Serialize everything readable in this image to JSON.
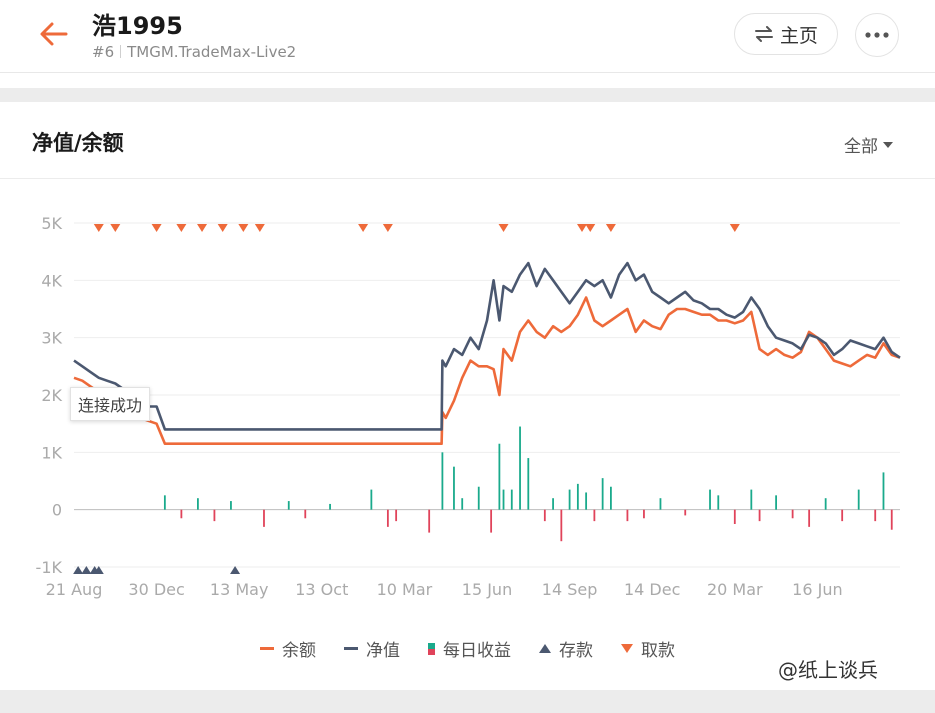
{
  "header": {
    "title": "浩1995",
    "account_id": "#6",
    "server": "TMGM.TradeMax-Live2",
    "home_label": "主页",
    "icons": {
      "back": "back-arrow-icon",
      "swap": "swap-icon",
      "more": "more-icon"
    }
  },
  "card": {
    "title": "净值/余额",
    "range_label": "全部"
  },
  "tooltip": "连接成功",
  "legend": [
    {
      "label": "余额",
      "color": "#ee6a3a",
      "kind": "line"
    },
    {
      "label": "净值",
      "color": "#4b5870",
      "kind": "line"
    },
    {
      "label": "每日收益",
      "color": "#1aaa8c",
      "kind": "bar"
    },
    {
      "label": "存款",
      "color": "#4b5870",
      "kind": "tri-up"
    },
    {
      "label": "取款",
      "color": "#ee6a3a",
      "kind": "tri-down"
    }
  ],
  "watermark": "@纸上谈兵",
  "colors": {
    "balance": "#ee6a3a",
    "equity": "#4b5870",
    "profit_pos": "#1aaa8c",
    "profit_neg": "#e0435a",
    "grid": "#eeeeee",
    "axis_text": "#aaaaaa"
  },
  "chart_data": {
    "type": "line",
    "title": "",
    "ylim": [
      -1000,
      5000
    ],
    "y_ticks": [
      5000,
      4000,
      3000,
      2000,
      1000,
      0,
      -1000
    ],
    "y_tick_labels": [
      "5K",
      "4K",
      "3K",
      "2K",
      "1K",
      "0",
      "-1K"
    ],
    "x_tick_labels": [
      "21 Aug",
      "30 Dec",
      "13 May",
      "13 Oct",
      "10 Mar",
      "15 Jun",
      "14 Sep",
      "14 Dec",
      "20 Mar",
      "16 Jun"
    ],
    "x_range": [
      0,
      100
    ],
    "x_tick_positions": [
      0,
      10,
      20,
      30,
      40,
      50,
      60,
      70,
      80,
      90
    ],
    "grid": true,
    "legend_position": "bottom",
    "series": [
      {
        "name": "净值",
        "points": [
          [
            0,
            2600
          ],
          [
            1,
            2500
          ],
          [
            2,
            2400
          ],
          [
            3,
            2300
          ],
          [
            4,
            2250
          ],
          [
            5,
            2200
          ],
          [
            6,
            2100
          ],
          [
            7,
            1900
          ],
          [
            8,
            1850
          ],
          [
            9,
            1800
          ],
          [
            10,
            1800
          ],
          [
            11,
            1400
          ],
          [
            20,
            1400
          ],
          [
            30,
            1400
          ],
          [
            40,
            1400
          ],
          [
            44.5,
            1400
          ],
          [
            44.6,
            2600
          ],
          [
            45,
            2500
          ],
          [
            46,
            2800
          ],
          [
            47,
            2700
          ],
          [
            48,
            3000
          ],
          [
            49,
            2800
          ],
          [
            50,
            3300
          ],
          [
            50.8,
            4000
          ],
          [
            51.5,
            3300
          ],
          [
            52,
            3900
          ],
          [
            53,
            3800
          ],
          [
            54,
            4100
          ],
          [
            55,
            4300
          ],
          [
            56,
            3900
          ],
          [
            57,
            4200
          ],
          [
            58,
            4000
          ],
          [
            59,
            3800
          ],
          [
            60,
            3600
          ],
          [
            61,
            3800
          ],
          [
            62,
            4000
          ],
          [
            63,
            3900
          ],
          [
            64,
            4000
          ],
          [
            65,
            3700
          ],
          [
            66,
            4100
          ],
          [
            67,
            4300
          ],
          [
            68,
            4000
          ],
          [
            69,
            4100
          ],
          [
            70,
            3800
          ],
          [
            71,
            3700
          ],
          [
            72,
            3600
          ],
          [
            73,
            3700
          ],
          [
            74,
            3800
          ],
          [
            75,
            3650
          ],
          [
            76,
            3600
          ],
          [
            77,
            3500
          ],
          [
            78,
            3500
          ],
          [
            79,
            3400
          ],
          [
            80,
            3350
          ],
          [
            81,
            3450
          ],
          [
            82,
            3700
          ],
          [
            83,
            3500
          ],
          [
            84,
            3200
          ],
          [
            85,
            3000
          ],
          [
            86,
            2950
          ],
          [
            87,
            2900
          ],
          [
            88,
            2800
          ],
          [
            89,
            3050
          ],
          [
            90,
            3000
          ],
          [
            91,
            2900
          ],
          [
            92,
            2700
          ],
          [
            93,
            2800
          ],
          [
            94,
            2950
          ],
          [
            95,
            2900
          ],
          [
            96,
            2850
          ],
          [
            97,
            2800
          ],
          [
            98,
            3000
          ],
          [
            99,
            2750
          ],
          [
            100,
            2650
          ]
        ]
      },
      {
        "name": "余额",
        "points": [
          [
            0,
            2300
          ],
          [
            1,
            2250
          ],
          [
            2,
            2150
          ],
          [
            3,
            2050
          ],
          [
            4,
            2000
          ],
          [
            5,
            1950
          ],
          [
            6,
            1800
          ],
          [
            7,
            1650
          ],
          [
            8,
            1600
          ],
          [
            9,
            1550
          ],
          [
            10,
            1500
          ],
          [
            11,
            1150
          ],
          [
            20,
            1150
          ],
          [
            30,
            1150
          ],
          [
            40,
            1150
          ],
          [
            44.5,
            1150
          ],
          [
            44.6,
            1700
          ],
          [
            45,
            1600
          ],
          [
            46,
            1900
          ],
          [
            47,
            2300
          ],
          [
            48,
            2600
          ],
          [
            49,
            2500
          ],
          [
            50,
            2500
          ],
          [
            50.8,
            2450
          ],
          [
            51.5,
            2000
          ],
          [
            52,
            2800
          ],
          [
            53,
            2600
          ],
          [
            54,
            3100
          ],
          [
            55,
            3300
          ],
          [
            56,
            3100
          ],
          [
            57,
            3000
          ],
          [
            58,
            3200
          ],
          [
            59,
            3100
          ],
          [
            60,
            3200
          ],
          [
            61,
            3400
          ],
          [
            62,
            3700
          ],
          [
            63,
            3300
          ],
          [
            64,
            3200
          ],
          [
            65,
            3300
          ],
          [
            66,
            3400
          ],
          [
            67,
            3500
          ],
          [
            68,
            3100
          ],
          [
            69,
            3300
          ],
          [
            70,
            3200
          ],
          [
            71,
            3150
          ],
          [
            72,
            3400
          ],
          [
            73,
            3500
          ],
          [
            74,
            3500
          ],
          [
            75,
            3450
          ],
          [
            76,
            3400
          ],
          [
            77,
            3400
          ],
          [
            78,
            3300
          ],
          [
            79,
            3300
          ],
          [
            80,
            3250
          ],
          [
            81,
            3300
          ],
          [
            82,
            3450
          ],
          [
            83,
            2800
          ],
          [
            84,
            2700
          ],
          [
            85,
            2800
          ],
          [
            86,
            2700
          ],
          [
            87,
            2650
          ],
          [
            88,
            2750
          ],
          [
            89,
            3100
          ],
          [
            90,
            3000
          ],
          [
            91,
            2800
          ],
          [
            92,
            2600
          ],
          [
            93,
            2550
          ],
          [
            94,
            2500
          ],
          [
            95,
            2600
          ],
          [
            96,
            2700
          ],
          [
            97,
            2650
          ],
          [
            98,
            2900
          ],
          [
            99,
            2700
          ],
          [
            100,
            2650
          ]
        ]
      },
      {
        "name": "每日收益",
        "type": "bar",
        "bars": [
          [
            11,
            250
          ],
          [
            13,
            -150
          ],
          [
            15,
            200
          ],
          [
            17,
            -200
          ],
          [
            19,
            150
          ],
          [
            23,
            -300
          ],
          [
            26,
            150
          ],
          [
            28,
            -150
          ],
          [
            31,
            100
          ],
          [
            36,
            350
          ],
          [
            38,
            -300
          ],
          [
            39,
            -200
          ],
          [
            43,
            -400
          ],
          [
            44.6,
            1000
          ],
          [
            46,
            750
          ],
          [
            47,
            200
          ],
          [
            49,
            400
          ],
          [
            50.5,
            -400
          ],
          [
            51.5,
            1150
          ],
          [
            52,
            350
          ],
          [
            53,
            350
          ],
          [
            54,
            1450
          ],
          [
            55,
            900
          ],
          [
            57,
            -200
          ],
          [
            58,
            200
          ],
          [
            59,
            -550
          ],
          [
            60,
            350
          ],
          [
            61,
            450
          ],
          [
            62,
            300
          ],
          [
            63,
            -200
          ],
          [
            64,
            550
          ],
          [
            65,
            400
          ],
          [
            67,
            -200
          ],
          [
            69,
            -150
          ],
          [
            71,
            200
          ],
          [
            74,
            -100
          ],
          [
            77,
            350
          ],
          [
            78,
            250
          ],
          [
            80,
            -250
          ],
          [
            82,
            350
          ],
          [
            83,
            -200
          ],
          [
            85,
            250
          ],
          [
            87,
            -150
          ],
          [
            89,
            -300
          ],
          [
            91,
            200
          ],
          [
            93,
            -200
          ],
          [
            95,
            350
          ],
          [
            97,
            -200
          ],
          [
            98,
            650
          ],
          [
            99,
            -350
          ]
        ]
      },
      {
        "name": "存款",
        "type": "marker",
        "marker": "triangle-up",
        "x": [
          0.5,
          1.5,
          2.5,
          3,
          19.5
        ]
      },
      {
        "name": "取款",
        "type": "marker",
        "marker": "triangle-down",
        "x": [
          3,
          5,
          10,
          13,
          15.5,
          18,
          20.5,
          22.5,
          35,
          38,
          52,
          61.5,
          62.5,
          65,
          80
        ]
      }
    ]
  }
}
